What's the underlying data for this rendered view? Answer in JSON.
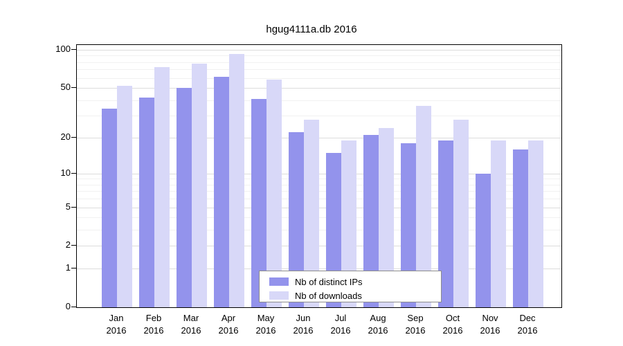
{
  "chart_data": {
    "type": "bar",
    "title": "hgug4111a.db 2016",
    "categories": [
      "Jan",
      "Feb",
      "Mar",
      "Apr",
      "May",
      "Jun",
      "Jul",
      "Aug",
      "Sep",
      "Oct",
      "Nov",
      "Dec"
    ],
    "year": "2016",
    "series": [
      {
        "name": "Nb of distinct IPs",
        "color": "#9393ec",
        "values": [
          34,
          42,
          50,
          61,
          41,
          22,
          15,
          21,
          18,
          19,
          10,
          16
        ]
      },
      {
        "name": "Nb of downloads",
        "color": "#d8d8f8",
        "values": [
          52,
          73,
          78,
          93,
          58,
          28,
          19,
          24,
          36,
          28,
          19,
          19
        ]
      }
    ],
    "y_ticks": [
      0,
      1,
      2,
      5,
      10,
      20,
      50,
      100
    ],
    "y_minor_ticks": [
      3,
      4,
      6,
      7,
      8,
      9,
      30,
      40,
      60,
      70,
      80,
      90
    ],
    "scale": "log1p",
    "ylim": [
      0,
      100
    ],
    "grid": true,
    "legend_position": "bottom-center"
  },
  "colors": {
    "grid_major": "#dcdcdc",
    "grid_minor": "#f1f1f1",
    "axis": "#000000",
    "background": "#ffffff"
  }
}
